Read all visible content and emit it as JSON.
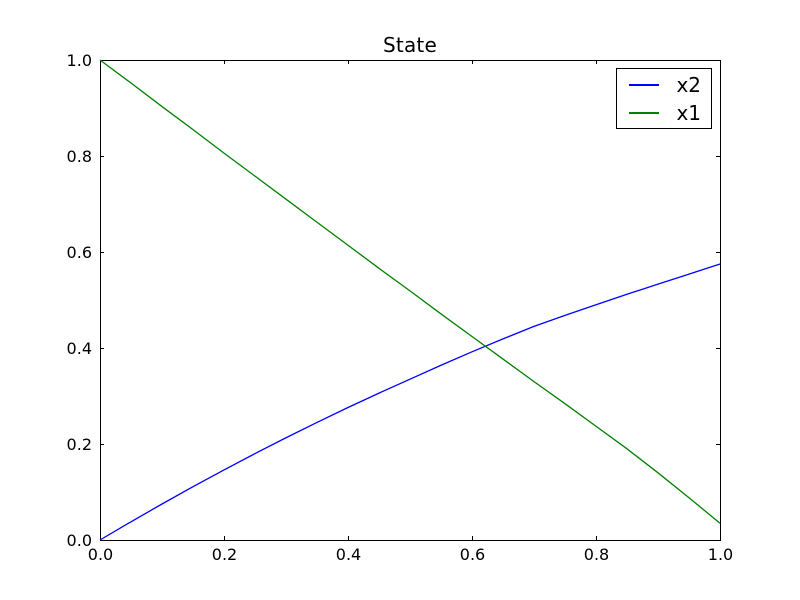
{
  "chart_data": {
    "type": "line",
    "title": "State",
    "xlabel": "",
    "ylabel": "",
    "xlim": [
      0.0,
      1.0
    ],
    "ylim": [
      0.0,
      1.0
    ],
    "grid": false,
    "background": "#ffffff",
    "frame_color": "#000000",
    "tick_style": "inward-all-sides",
    "xticks": [
      0.0,
      0.2,
      0.4,
      0.6,
      0.8,
      1.0
    ],
    "yticks": [
      0.0,
      0.2,
      0.4,
      0.6,
      0.8,
      1.0
    ],
    "xtick_labels": [
      "0.0",
      "0.2",
      "0.4",
      "0.6",
      "0.8",
      "1.0"
    ],
    "ytick_labels": [
      "0.0",
      "0.2",
      "0.4",
      "0.6",
      "0.8",
      "1.0"
    ],
    "x": [
      0.0,
      0.05,
      0.1,
      0.15,
      0.2,
      0.25,
      0.3,
      0.35,
      0.4,
      0.45,
      0.5,
      0.55,
      0.6,
      0.65,
      0.7,
      0.75,
      0.8,
      0.85,
      0.9,
      0.95,
      1.0
    ],
    "series": [
      {
        "name": "x2",
        "color": "#0000ff",
        "values": [
          0.0,
          0.038,
          0.075,
          0.111,
          0.146,
          0.18,
          0.213,
          0.245,
          0.276,
          0.306,
          0.335,
          0.364,
          0.392,
          0.419,
          0.445,
          0.468,
          0.49,
          0.512,
          0.533,
          0.554,
          0.575
        ]
      },
      {
        "name": "x1",
        "color": "#008000",
        "values": [
          1.0,
          0.952,
          0.903,
          0.855,
          0.806,
          0.758,
          0.71,
          0.662,
          0.614,
          0.566,
          0.519,
          0.471,
          0.424,
          0.377,
          0.33,
          0.284,
          0.237,
          0.19,
          0.14,
          0.088,
          0.035
        ]
      }
    ],
    "legend": {
      "position": "upper right",
      "entries": [
        "x2",
        "x1"
      ]
    }
  }
}
